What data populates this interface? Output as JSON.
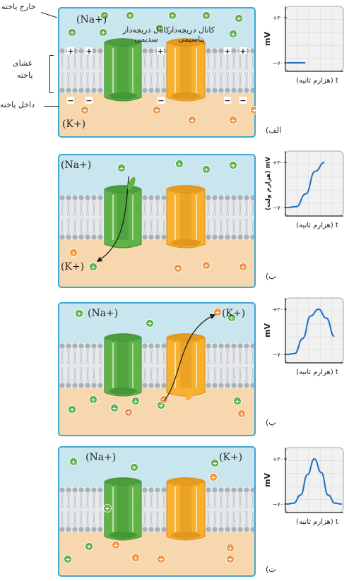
{
  "labels": {
    "outside_cell": "خارج یاخته",
    "membrane": [
      "غشای",
      "یاخته"
    ],
    "inside_cell": "داخل یاخته",
    "na_channel": [
      "کانال دریچه‌دار",
      "سدیمی"
    ],
    "k_channel": [
      "کانال دریچه‌دار",
      "پتاسیمی"
    ]
  },
  "ions": {
    "na": "(Na+)",
    "k": "(K+)"
  },
  "graph": {
    "ylabel": "mV",
    "xlabel": "(هزارم ثانیه) t",
    "ylabel_2": "(هزارم ولت) mV",
    "y_top": "+۳۰",
    "y_bottom": "−۷۰"
  },
  "panels": [
    {
      "letter": "الف)",
      "phase": "rest"
    },
    {
      "letter": "ب)",
      "phase": "depolarization"
    },
    {
      "letter": "پ)",
      "phase": "repolarization"
    },
    {
      "letter": "ت)",
      "phase": "end"
    }
  ],
  "chart_data": [
    {
      "type": "line",
      "x": [
        0,
        1
      ],
      "y": [
        -70,
        -70
      ],
      "ylim": [
        -70,
        30
      ]
    },
    {
      "type": "line",
      "x": [
        0,
        1,
        2,
        3,
        4
      ],
      "y": [
        -70,
        -68,
        -40,
        10,
        30
      ],
      "ylim": [
        -70,
        30
      ]
    },
    {
      "type": "line",
      "x": [
        0,
        1,
        2,
        3,
        4,
        5,
        6
      ],
      "y": [
        -70,
        -68,
        -35,
        15,
        30,
        10,
        -30
      ],
      "ylim": [
        -70,
        30
      ]
    },
    {
      "type": "line",
      "x": [
        0,
        1,
        2,
        3,
        4,
        5,
        6,
        7,
        8
      ],
      "y": [
        -70,
        -68,
        -50,
        -5,
        30,
        0,
        -50,
        -68,
        -70
      ],
      "ylim": [
        -70,
        30
      ]
    }
  ],
  "colors": {
    "extracellular": "#c9e6ef",
    "intracellular": "#f7d8ae",
    "panel_border": "#42a7d4",
    "na_ion": "#5cae4d",
    "k_ion": "#f0913c",
    "na_channel": "#5fb347",
    "k_channel": "#f5b12f",
    "trace": "#1f6fc0"
  }
}
